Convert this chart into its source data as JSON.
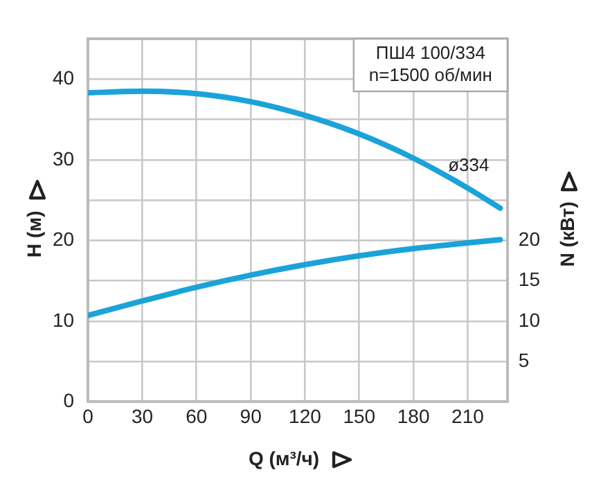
{
  "chart_data": {
    "type": "line",
    "annotations": [
      "ПШ4 100/334\nn=1500 об/мин",
      "ø334"
    ],
    "xlabel": "Q (м³/ч)",
    "ylabel": "H (м)",
    "y2label": "N (кВт)",
    "x": [
      0,
      30,
      60,
      90,
      120,
      150,
      180,
      210,
      228
    ],
    "series": [
      {
        "color": "#1ba3d9",
        "values": [
          38.3,
          38.5,
          38.2,
          37.2,
          35.5,
          33.2,
          30.2,
          26.5,
          24
        ]
      },
      {
        "color": "#1ba3d9",
        "values": [
          10.7,
          12.5,
          14.2,
          15.7,
          17,
          18.1,
          19,
          19.7,
          20.1
        ]
      }
    ],
    "xlim": [
      0,
      232
    ],
    "xticks": [
      0,
      30,
      60,
      90,
      120,
      150,
      180,
      210
    ],
    "ylim": [
      0,
      45
    ],
    "yticks": [
      0,
      {
        "value": 5,
        "label": null
      },
      10,
      {
        "value": 15,
        "label": null
      },
      20,
      {
        "value": 25,
        "label": null
      },
      30,
      {
        "value": 35,
        "label": null
      },
      40,
      {
        "value": 45,
        "label": null
      }
    ],
    "y2lim": [
      0,
      45
    ],
    "y2ticks": [
      5,
      10,
      15,
      20
    ],
    "grid": true,
    "legend": false,
    "marker": "none",
    "line_style": "solid"
  }
}
